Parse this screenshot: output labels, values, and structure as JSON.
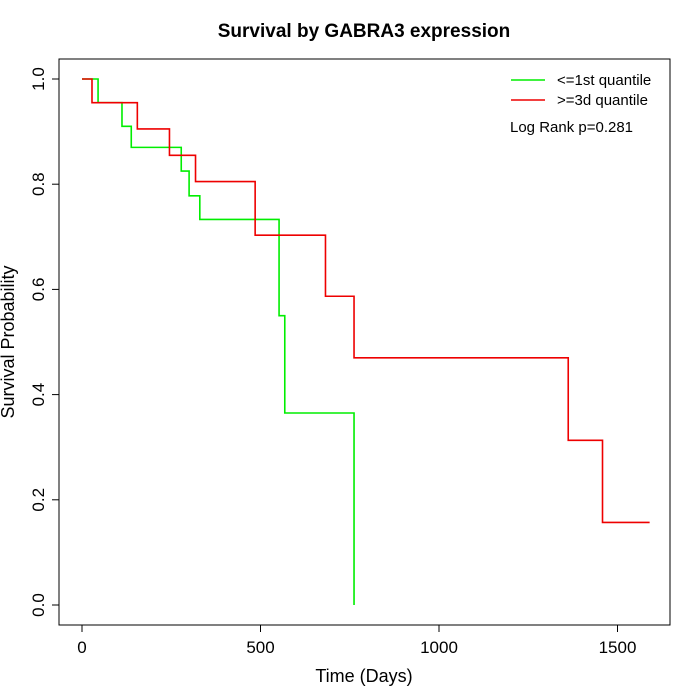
{
  "chart_data": {
    "type": "line",
    "title": "Survival by GABRA3 expression",
    "xlabel": "Time (Days)",
    "ylabel": "Survival Probability",
    "xlim": [
      0,
      1650
    ],
    "ylim": [
      0,
      1.0
    ],
    "xticks": [
      0,
      500,
      1000,
      1500
    ],
    "yticks": [
      0.0,
      0.2,
      0.4,
      0.6,
      0.8,
      1.0
    ],
    "xtick_labels": [
      "0",
      "500",
      "1000",
      "1500"
    ],
    "ytick_labels": [
      "0.0",
      "0.2",
      "0.4",
      "0.6",
      "0.8",
      "1.0"
    ],
    "grid": false,
    "legend_position": "top-right",
    "annotation": "Log Rank p=0.281",
    "series": [
      {
        "name": "<=1st quantile",
        "color": "#00ee00",
        "steps": [
          [
            0,
            1.0
          ],
          [
            45,
            0.955
          ],
          [
            112,
            0.91
          ],
          [
            138,
            0.87
          ],
          [
            278,
            0.825
          ],
          [
            300,
            0.778
          ],
          [
            330,
            0.733
          ],
          [
            552,
            0.55
          ],
          [
            568,
            0.365
          ],
          [
            762,
            0.0
          ]
        ]
      },
      {
        "name": ">=3d quantile",
        "color": "#ee0000",
        "steps": [
          [
            0,
            1.0
          ],
          [
            28,
            0.955
          ],
          [
            155,
            0.905
          ],
          [
            245,
            0.855
          ],
          [
            318,
            0.805
          ],
          [
            485,
            0.703
          ],
          [
            682,
            0.587
          ],
          [
            762,
            0.47
          ],
          [
            1362,
            0.313
          ],
          [
            1458,
            0.157
          ],
          [
            1590,
            0.157
          ]
        ]
      }
    ]
  }
}
